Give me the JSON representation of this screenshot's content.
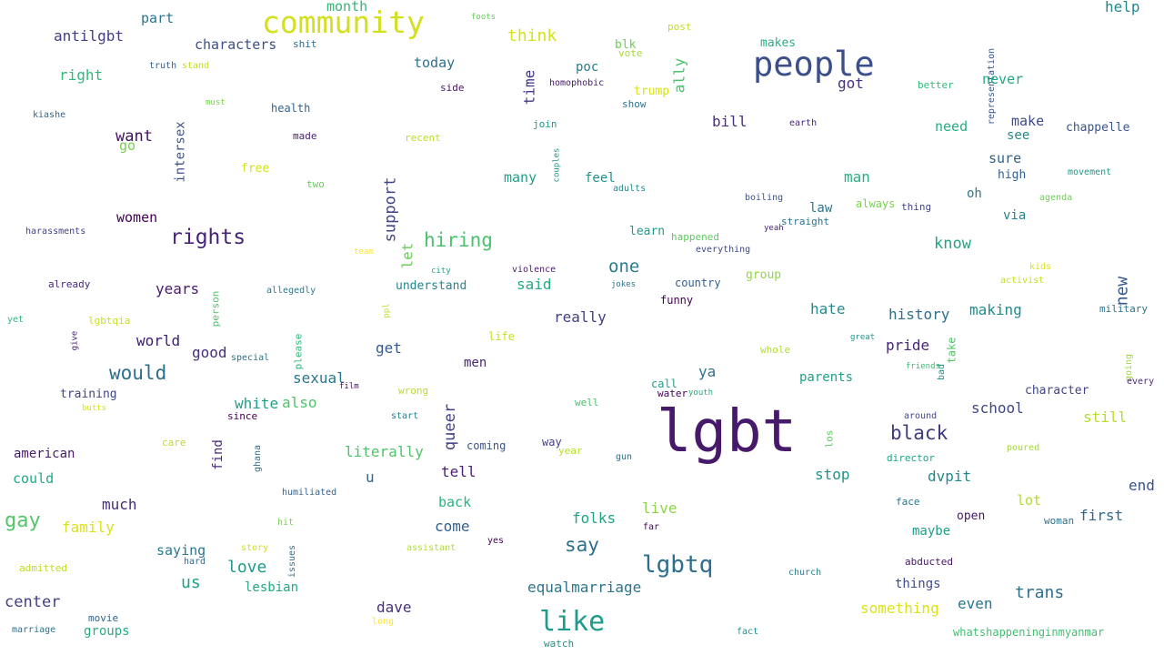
{
  "words": [
    {
      "text": "lgbt",
      "color": "#46196b"
    },
    {
      "text": "community",
      "color": "#d3df20"
    },
    {
      "text": "people",
      "color": "#3b4f8a"
    },
    {
      "text": "like",
      "color": "#1f9b8b"
    },
    {
      "text": "lgbtq",
      "color": "#2d6e8e"
    },
    {
      "text": "rights",
      "color": "#47247a"
    },
    {
      "text": "gay",
      "color": "#55c667"
    },
    {
      "text": "hiring",
      "color": "#4ac16d"
    },
    {
      "text": "would",
      "color": "#2d6e8e"
    },
    {
      "text": "black",
      "color": "#3e3b7f"
    },
    {
      "text": "say",
      "color": "#2e6f8e"
    },
    {
      "text": "one",
      "color": "#277e8e"
    },
    {
      "text": "month",
      "color": "#36b677"
    },
    {
      "text": "think",
      "color": "#d5e21a"
    },
    {
      "text": "help",
      "color": "#24868e"
    },
    {
      "text": "antilgbt",
      "color": "#433e85"
    },
    {
      "text": "part",
      "color": "#2a768e"
    },
    {
      "text": "characters",
      "color": "#3c4f8a"
    },
    {
      "text": "shit",
      "color": "#31688e"
    },
    {
      "text": "foots",
      "color": "#67cc5c"
    },
    {
      "text": "post",
      "color": "#c2df23"
    },
    {
      "text": "blk",
      "color": "#6ece58"
    },
    {
      "text": "vote",
      "color": "#a8db34"
    },
    {
      "text": "makes",
      "color": "#2ab07f"
    },
    {
      "text": "representation",
      "color": "#39568c"
    },
    {
      "text": "right",
      "color": "#35b779"
    },
    {
      "text": "truth",
      "color": "#355f8d"
    },
    {
      "text": "stand",
      "color": "#c0df25"
    },
    {
      "text": "today",
      "color": "#2d718e"
    },
    {
      "text": "time",
      "color": "#453581"
    },
    {
      "text": "poc",
      "color": "#287c8e"
    },
    {
      "text": "ally",
      "color": "#4ac16d"
    },
    {
      "text": "got",
      "color": "#46337e"
    },
    {
      "text": "never",
      "color": "#22a884"
    },
    {
      "text": "better",
      "color": "#37b878"
    },
    {
      "text": "homophobic",
      "color": "#48186a"
    },
    {
      "text": "trump",
      "color": "#d8e219"
    },
    {
      "text": "side",
      "color": "#481668"
    },
    {
      "text": "show",
      "color": "#2c728e"
    },
    {
      "text": "kiashe",
      "color": "#33638d"
    },
    {
      "text": "must",
      "color": "#7ad151"
    },
    {
      "text": "health",
      "color": "#32648e"
    },
    {
      "text": "intersex",
      "color": "#3b518b"
    },
    {
      "text": "made",
      "color": "#481d6f"
    },
    {
      "text": "recent",
      "color": "#b8de29"
    },
    {
      "text": "join",
      "color": "#1f988b"
    },
    {
      "text": "bill",
      "color": "#46307e"
    },
    {
      "text": "earth",
      "color": "#482677"
    },
    {
      "text": "need",
      "color": "#26ad81"
    },
    {
      "text": "make",
      "color": "#3e4a89"
    },
    {
      "text": "chappelle",
      "color": "#39558c"
    },
    {
      "text": "see",
      "color": "#238a8d"
    },
    {
      "text": "want",
      "color": "#471063"
    },
    {
      "text": "go",
      "color": "#7ad151"
    },
    {
      "text": "couples",
      "color": "#21918c"
    },
    {
      "text": "sure",
      "color": "#33638d"
    },
    {
      "text": "support",
      "color": "#404688"
    },
    {
      "text": "many",
      "color": "#1f9e89"
    },
    {
      "text": "feel",
      "color": "#21918c"
    },
    {
      "text": "adults",
      "color": "#23898e"
    },
    {
      "text": "man",
      "color": "#29af7f"
    },
    {
      "text": "high",
      "color": "#355f8d"
    },
    {
      "text": "movement",
      "color": "#1f968b"
    },
    {
      "text": "free",
      "color": "#d2e21b"
    },
    {
      "text": "two",
      "color": "#67cc5c"
    },
    {
      "text": "oh",
      "color": "#2a788e"
    },
    {
      "text": "agenda",
      "color": "#6ece58"
    },
    {
      "text": "women",
      "color": "#440154"
    },
    {
      "text": "boiling",
      "color": "#3b528b"
    },
    {
      "text": "law",
      "color": "#2a768e"
    },
    {
      "text": "always",
      "color": "#7ad151"
    },
    {
      "text": "thing",
      "color": "#414487"
    },
    {
      "text": "via",
      "color": "#25838e"
    },
    {
      "text": "straight",
      "color": "#2c738e"
    },
    {
      "text": "harassments",
      "color": "#414487"
    },
    {
      "text": "learn",
      "color": "#1f9a8a"
    },
    {
      "text": "happened",
      "color": "#5ec962"
    },
    {
      "text": "yeah",
      "color": "#482475"
    },
    {
      "text": "know",
      "color": "#21a685"
    },
    {
      "text": "team",
      "color": "#fde725"
    },
    {
      "text": "let",
      "color": "#6ccd5a"
    },
    {
      "text": "everything",
      "color": "#3e4989"
    },
    {
      "text": "city",
      "color": "#21a585"
    },
    {
      "text": "violence",
      "color": "#481a6c"
    },
    {
      "text": "group",
      "color": "#8fd744"
    },
    {
      "text": "kids",
      "color": "#dde318"
    },
    {
      "text": "new",
      "color": "#38588c"
    },
    {
      "text": "already",
      "color": "#482878"
    },
    {
      "text": "years",
      "color": "#481a6c"
    },
    {
      "text": "person",
      "color": "#50c46a"
    },
    {
      "text": "allegedly",
      "color": "#287d8e"
    },
    {
      "text": "understand",
      "color": "#25848e"
    },
    {
      "text": "said",
      "color": "#25ab82"
    },
    {
      "text": "jokes",
      "color": "#2c728e"
    },
    {
      "text": "country",
      "color": "#355e8d"
    },
    {
      "text": "activist",
      "color": "#c5e021"
    },
    {
      "text": "funny",
      "color": "#440154"
    },
    {
      "text": "ppl",
      "color": "#b5de2b"
    },
    {
      "text": "yet",
      "color": "#31b57b"
    },
    {
      "text": "lgbtqia",
      "color": "#c8e020"
    },
    {
      "text": "give",
      "color": "#482173"
    },
    {
      "text": "really",
      "color": "#423f85"
    },
    {
      "text": "hate",
      "color": "#238a8d"
    },
    {
      "text": "history",
      "color": "#2d708e"
    },
    {
      "text": "making",
      "color": "#228c8d"
    },
    {
      "text": "military",
      "color": "#2e6f8e"
    },
    {
      "text": "please",
      "color": "#35b779"
    },
    {
      "text": "life",
      "color": "#c0df25"
    },
    {
      "text": "world",
      "color": "#3b1c6f"
    },
    {
      "text": "good",
      "color": "#472d7b"
    },
    {
      "text": "special",
      "color": "#2c728e"
    },
    {
      "text": "get",
      "color": "#38598c"
    },
    {
      "text": "men",
      "color": "#482475"
    },
    {
      "text": "great",
      "color": "#1f958b"
    },
    {
      "text": "whole",
      "color": "#b2dd2d"
    },
    {
      "text": "pride",
      "color": "#482576"
    },
    {
      "text": "take",
      "color": "#52c569"
    },
    {
      "text": "going",
      "color": "#9dd93b"
    },
    {
      "text": "bad",
      "color": "#21908d"
    },
    {
      "text": "friends",
      "color": "#3bbb75"
    },
    {
      "text": "every",
      "color": "#472c7a"
    },
    {
      "text": "ya",
      "color": "#2c728e"
    },
    {
      "text": "parents",
      "color": "#1fa088"
    },
    {
      "text": "sexual",
      "color": "#2a768e"
    },
    {
      "text": "film",
      "color": "#471063"
    },
    {
      "text": "wrong",
      "color": "#b2dd2d"
    },
    {
      "text": "training",
      "color": "#414487"
    },
    {
      "text": "call",
      "color": "#1f9e89"
    },
    {
      "text": "youth",
      "color": "#25ab82"
    },
    {
      "text": "water",
      "color": "#440154"
    },
    {
      "text": "character",
      "color": "#404588"
    },
    {
      "text": "white",
      "color": "#1fa088"
    },
    {
      "text": "also",
      "color": "#4ec36b"
    },
    {
      "text": "well",
      "color": "#4ac16d"
    },
    {
      "text": "queer",
      "color": "#424186"
    },
    {
      "text": "school",
      "color": "#3f4788"
    },
    {
      "text": "still",
      "color": "#b5de2b"
    },
    {
      "text": "butts",
      "color": "#d8e219"
    },
    {
      "text": "since",
      "color": "#440154"
    },
    {
      "text": "start",
      "color": "#287d8e"
    },
    {
      "text": "around",
      "color": "#3f4889"
    },
    {
      "text": "los",
      "color": "#5ec962"
    },
    {
      "text": "american",
      "color": "#481b6d"
    },
    {
      "text": "care",
      "color": "#b8de29"
    },
    {
      "text": "find",
      "color": "#482979"
    },
    {
      "text": "ghana",
      "color": "#2d718e"
    },
    {
      "text": "coming",
      "color": "#3b528b"
    },
    {
      "text": "way",
      "color": "#433e85"
    },
    {
      "text": "year",
      "color": "#b8de29"
    },
    {
      "text": "literally",
      "color": "#50c46a"
    },
    {
      "text": "gun",
      "color": "#2c728e"
    },
    {
      "text": "director",
      "color": "#20a386"
    },
    {
      "text": "poured",
      "color": "#a0da39"
    },
    {
      "text": "could",
      "color": "#22a884"
    },
    {
      "text": "u",
      "color": "#31668e"
    },
    {
      "text": "tell",
      "color": "#481f70"
    },
    {
      "text": "stop",
      "color": "#20928c"
    },
    {
      "text": "dvpit",
      "color": "#23888e"
    },
    {
      "text": "end",
      "color": "#3a548c"
    },
    {
      "text": "much",
      "color": "#472c7a"
    },
    {
      "text": "humiliated",
      "color": "#33628d"
    },
    {
      "text": "back",
      "color": "#2db27d"
    },
    {
      "text": "live",
      "color": "#8bd646"
    },
    {
      "text": "face",
      "color": "#2a788e"
    },
    {
      "text": "lot",
      "color": "#b2dd2d"
    },
    {
      "text": "family",
      "color": "#dae319"
    },
    {
      "text": "folks",
      "color": "#20a386"
    },
    {
      "text": "far",
      "color": "#450559"
    },
    {
      "text": "open",
      "color": "#481769"
    },
    {
      "text": "woman",
      "color": "#2d708e"
    },
    {
      "text": "first",
      "color": "#30698e"
    },
    {
      "text": "hit",
      "color": "#7ad151"
    },
    {
      "text": "come",
      "color": "#355f8d"
    },
    {
      "text": "maybe",
      "color": "#1f9e89"
    },
    {
      "text": "saying",
      "color": "#2a788e"
    },
    {
      "text": "story",
      "color": "#d2e21b"
    },
    {
      "text": "issues",
      "color": "#2e6e8e"
    },
    {
      "text": "assistant",
      "color": "#b0dd2f"
    },
    {
      "text": "yes",
      "color": "#440154"
    },
    {
      "text": "abducted",
      "color": "#481668"
    },
    {
      "text": "hard",
      "color": "#31688e"
    },
    {
      "text": "admitted",
      "color": "#bade28"
    },
    {
      "text": "love",
      "color": "#1f9a8a"
    },
    {
      "text": "us",
      "color": "#1fa188"
    },
    {
      "text": "church",
      "color": "#287c8e"
    },
    {
      "text": "things",
      "color": "#3e4c8a"
    },
    {
      "text": "equalmarriage",
      "color": "#2b758e"
    },
    {
      "text": "trans",
      "color": "#2d708e"
    },
    {
      "text": "center",
      "color": "#424086"
    },
    {
      "text": "lesbian",
      "color": "#23a983"
    },
    {
      "text": "even",
      "color": "#2b748e"
    },
    {
      "text": "dave",
      "color": "#46327e"
    },
    {
      "text": "something",
      "color": "#dbe318"
    },
    {
      "text": "movie",
      "color": "#32648e"
    },
    {
      "text": "marriage",
      "color": "#2c728e"
    },
    {
      "text": "groups",
      "color": "#26ad81"
    },
    {
      "text": "long",
      "color": "#fde725"
    },
    {
      "text": "watch",
      "color": "#21918c"
    },
    {
      "text": "fact",
      "color": "#21918c"
    },
    {
      "text": "whatshappeninginmyanmar",
      "color": "#42be71"
    }
  ]
}
